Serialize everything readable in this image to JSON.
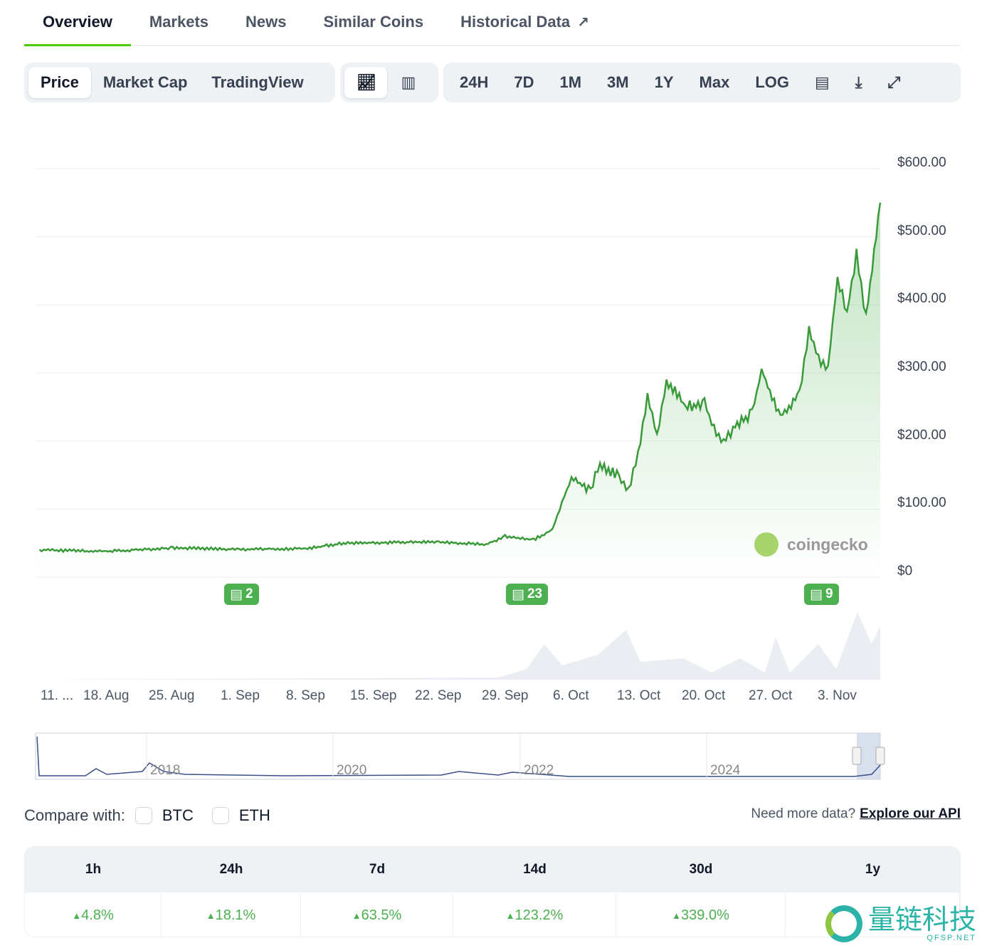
{
  "tabs": [
    {
      "label": "Overview"
    },
    {
      "label": "Markets"
    },
    {
      "label": "News"
    },
    {
      "label": "Similar Coins"
    },
    {
      "label": "Historical Data"
    }
  ],
  "toolbar": {
    "chart_types": [
      "Price",
      "Market Cap",
      "TradingView"
    ],
    "ranges": [
      "24H",
      "7D",
      "1M",
      "3M",
      "1Y",
      "Max",
      "LOG"
    ]
  },
  "watermark_chart": "coingecko",
  "news_badges": [
    {
      "count": "2"
    },
    {
      "count": "23"
    },
    {
      "count": "9"
    }
  ],
  "compare": {
    "label": "Compare with:",
    "options": [
      "BTC",
      "ETH"
    ],
    "api_prompt": "Need more data?",
    "api_link": "Explore our API"
  },
  "performance": {
    "headers": [
      "1h",
      "24h",
      "7d",
      "14d",
      "30d",
      "1y"
    ],
    "values": [
      "4.8%",
      "18.1%",
      "63.5%",
      "123.2%",
      "339.0%",
      ""
    ]
  },
  "watermark": {
    "text": "量链科技",
    "sub": "QFSP.NET"
  },
  "colors": {
    "line": "#3a9a3a",
    "accent": "#4bcc00",
    "badge": "#4caf50",
    "navigator": "#3b4f8a"
  },
  "chart_data": {
    "type": "area",
    "yticks": [
      "$600.00",
      "$500.00",
      "$400.00",
      "$300.00",
      "$200.00",
      "$100.00",
      "$0"
    ],
    "ylim": [
      0,
      600
    ],
    "xticks": [
      "11. ...",
      "18. Aug",
      "25. Aug",
      "1. Sep",
      "8. Sep",
      "15. Sep",
      "22. Sep",
      "29. Sep",
      "6. Oct",
      "13. Oct",
      "20. Oct",
      "27. Oct",
      "3. Nov"
    ],
    "x": [
      "2024-08-11",
      "2024-08-18",
      "2024-08-25",
      "2024-09-01",
      "2024-09-08",
      "2024-09-12",
      "2024-09-22",
      "2024-09-27",
      "2024-09-29",
      "2024-10-02",
      "2024-10-04",
      "2024-10-05",
      "2024-10-06",
      "2024-10-08",
      "2024-10-09",
      "2024-10-11",
      "2024-10-12",
      "2024-10-13",
      "2024-10-14",
      "2024-10-15",
      "2024-10-16",
      "2024-10-18",
      "2024-10-20",
      "2024-10-21",
      "2024-10-22",
      "2024-10-23",
      "2024-10-25",
      "2024-10-26",
      "2024-10-28",
      "2024-10-30",
      "2024-10-31",
      "2024-11-01",
      "2024-11-02",
      "2024-11-03",
      "2024-11-04",
      "2024-11-05",
      "2024-11-06",
      "2024-11-07"
    ],
    "price": [
      40,
      38,
      43,
      41,
      42,
      50,
      52,
      48,
      60,
      55,
      70,
      110,
      145,
      130,
      165,
      150,
      125,
      180,
      265,
      210,
      290,
      250,
      255,
      220,
      195,
      220,
      240,
      305,
      235,
      270,
      365,
      320,
      310,
      440,
      390,
      475,
      380,
      550
    ],
    "navigator_years": [
      "2018",
      "2020",
      "2022",
      "2024"
    ]
  }
}
